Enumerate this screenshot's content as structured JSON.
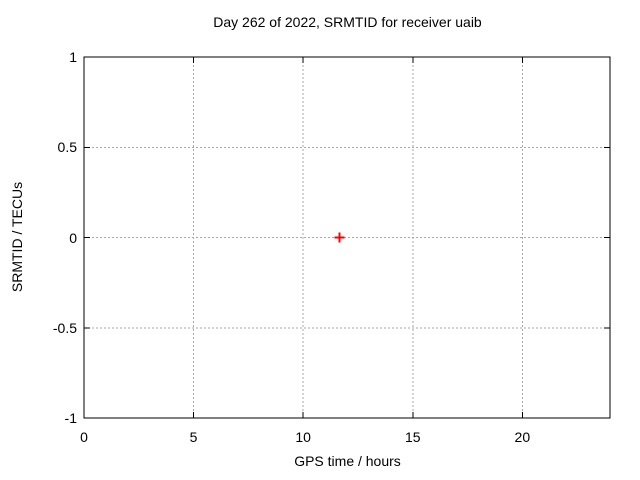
{
  "chart_data": {
    "type": "scatter",
    "title": "Day 262 of 2022, SRMTID for receiver uaib",
    "xlabel": "GPS time / hours",
    "ylabel": "SRMTID / TECUs",
    "xlim": [
      0,
      24
    ],
    "ylim": [
      -1,
      1
    ],
    "xticks": [
      0,
      5,
      10,
      15,
      20
    ],
    "xtick_labels": [
      "0",
      "5",
      "10",
      "15",
      "20"
    ],
    "yticks": [
      1,
      0.5,
      0,
      -0.5,
      -1
    ],
    "ytick_labels": [
      "1",
      "0.5",
      "0",
      "-0.5",
      "-1"
    ],
    "grid": true,
    "legend": "none",
    "series": [
      {
        "marker": "plus",
        "color": "#ff0000",
        "points": [
          {
            "x": 11.66,
            "y": 0.0
          }
        ]
      }
    ]
  },
  "colors": {
    "background": "#ffffff",
    "axis": "#000000",
    "grid": "#a8a8a8",
    "text": "#000000",
    "point": "#ff0000"
  }
}
